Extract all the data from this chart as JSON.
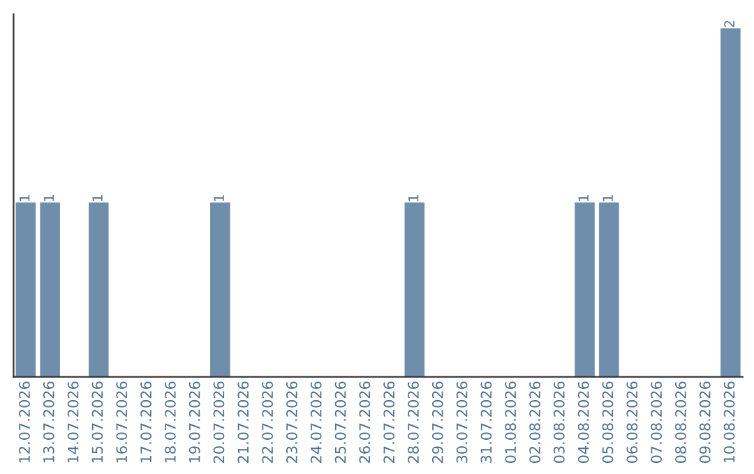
{
  "chart_data": {
    "type": "bar",
    "categories": [
      "12.07.2026",
      "13.07.2026",
      "14.07.2026",
      "15.07.2026",
      "16.07.2026",
      "17.07.2026",
      "18.07.2026",
      "19.07.2026",
      "20.07.2026",
      "21.07.2026",
      "22.07.2026",
      "23.07.2026",
      "24.07.2026",
      "25.07.2026",
      "26.07.2026",
      "27.07.2026",
      "28.07.2026",
      "29.07.2026",
      "30.07.2026",
      "31.07.2026",
      "01.08.2026",
      "02.08.2026",
      "03.08.2026",
      "04.08.2026",
      "05.08.2026",
      "06.08.2026",
      "07.08.2026",
      "08.08.2026",
      "09.08.2026",
      "10.08.2026"
    ],
    "values": [
      1,
      1,
      0,
      1,
      0,
      0,
      0,
      0,
      1,
      0,
      0,
      0,
      0,
      0,
      0,
      0,
      1,
      0,
      0,
      0,
      0,
      0,
      0,
      1,
      1,
      0,
      0,
      0,
      0,
      2
    ],
    "value_labels": [
      "1",
      "1",
      null,
      "1",
      null,
      null,
      null,
      null,
      "1",
      null,
      null,
      null,
      null,
      null,
      null,
      null,
      "1",
      null,
      null,
      null,
      null,
      null,
      null,
      "1",
      "1",
      null,
      null,
      null,
      null,
      "2"
    ],
    "color": "#6e8eab",
    "tick_labels": "x",
    "grid": false,
    "legend": false
  }
}
